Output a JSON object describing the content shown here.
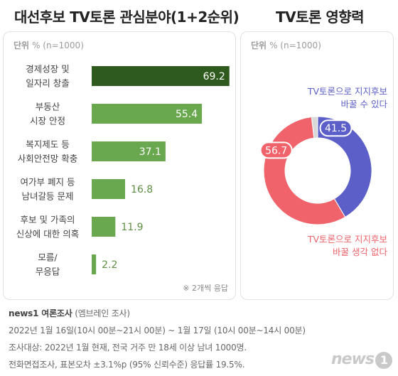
{
  "titles": {
    "left": "대선후보 TV토론 관심분야(1+2순위)",
    "right": "TV토론 영향력"
  },
  "unit": {
    "label": "단위",
    "text": "% (n=1000)"
  },
  "note": "※ 2개씩 응답",
  "colors": {
    "bar_top": "#2f5a1e",
    "bar": "#6aa84f",
    "value_outside": "#5e8f44",
    "donut_blue": "#5b5fc7",
    "donut_red": "#f0636a",
    "donut_gray": "#d9d9d9"
  },
  "chart_data": [
    {
      "type": "bar",
      "orientation": "horizontal",
      "title": "대선후보 TV토론 관심분야(1+2순위)",
      "unit": "% (n=1000)",
      "categories": [
        [
          "경제성장 및",
          "일자리 창출"
        ],
        [
          "부동산",
          "시장 안정"
        ],
        [
          "복지제도 등",
          "사회안전망 확충"
        ],
        [
          "여가부 폐지 등",
          "남녀갈등 문제"
        ],
        [
          "후보 및 가족의",
          "신상에 대한 의혹"
        ],
        [
          "모름/",
          "무응답"
        ]
      ],
      "values": [
        69.2,
        55.4,
        37.1,
        16.8,
        11.9,
        2.2
      ],
      "xlim": [
        0,
        70
      ],
      "note": "※ 2개씩 응답"
    },
    {
      "type": "pie",
      "style": "donut",
      "title": "TV토론 영향력",
      "unit": "% (n=1000)",
      "slices": [
        {
          "label": [
            "TV토론으로 지지후보",
            "바꿀 수 있다"
          ],
          "value": 41.5
        },
        {
          "label": [
            "TV토론으로 지지후보",
            "바꿀 생각 없다"
          ],
          "value": 56.7
        },
        {
          "label": "",
          "value": 1.8
        }
      ]
    }
  ],
  "footer": {
    "source_bold": "news1 여론조사",
    "source_sub": "(엠브레인 조사)",
    "line1": "2022년 1월 16일(10시 00분~21시 00분) ~ 1월 17일 (10시 00분~14시 00분)",
    "line2": "조사대상: 2022년 1월 현재, 전국 거주 만 18세 이상 남녀 1000명.",
    "line3": "전화면접조사, 표본오차 ±3.1%p (95% 신뢰수준) 응답률 19.5%."
  },
  "logo": {
    "text": "news",
    "num": "1"
  }
}
